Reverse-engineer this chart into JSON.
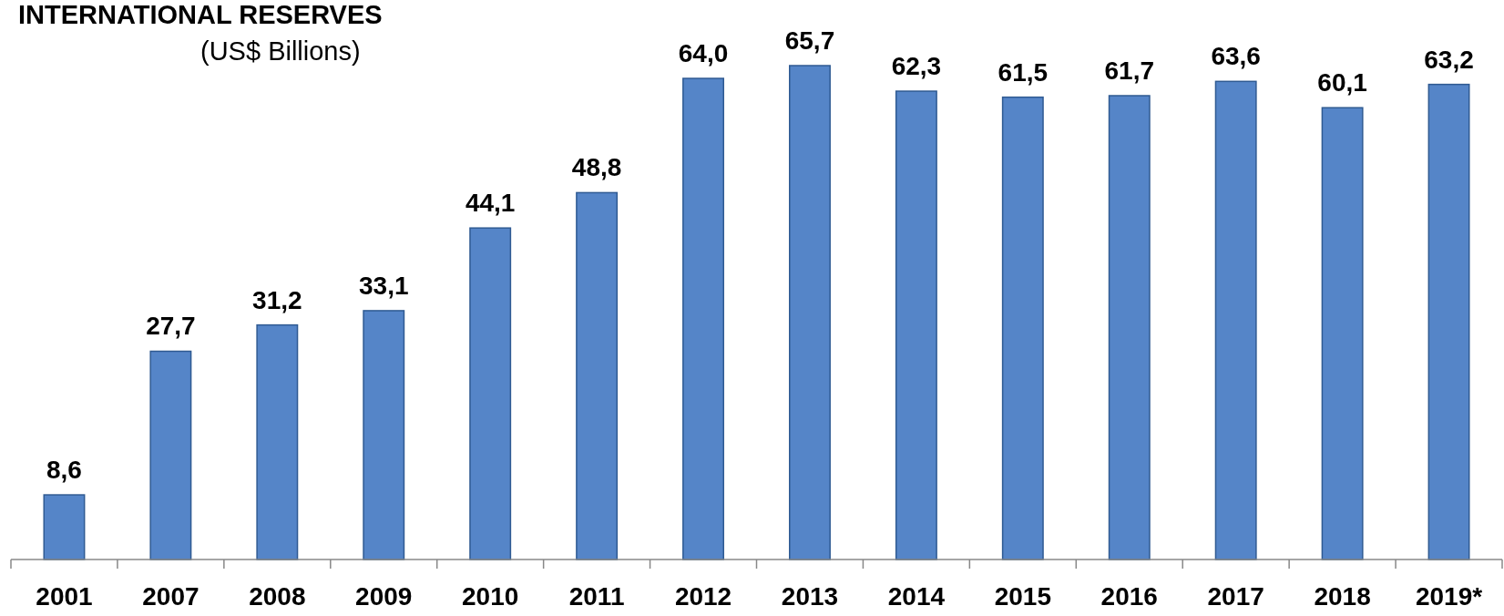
{
  "chart_data": {
    "type": "bar",
    "title": "INTERNATIONAL RESERVES",
    "subtitle": "(US$ Billions)",
    "categories": [
      "2001",
      "2007",
      "2008",
      "2009",
      "2010",
      "2011",
      "2012",
      "2013",
      "2014",
      "2015",
      "2016",
      "2017",
      "2018",
      "2019*"
    ],
    "values": [
      8.6,
      27.7,
      31.2,
      33.1,
      44.1,
      48.8,
      64.0,
      65.7,
      62.3,
      61.5,
      61.7,
      63.6,
      60.1,
      63.2
    ],
    "value_labels": [
      "8,6",
      "27,7",
      "31,2",
      "33,1",
      "44,1",
      "48,8",
      "64,0",
      "65,7",
      "62,3",
      "61,5",
      "61,7",
      "63,6",
      "60,1",
      "63,2"
    ],
    "color": "#5585c8"
  }
}
